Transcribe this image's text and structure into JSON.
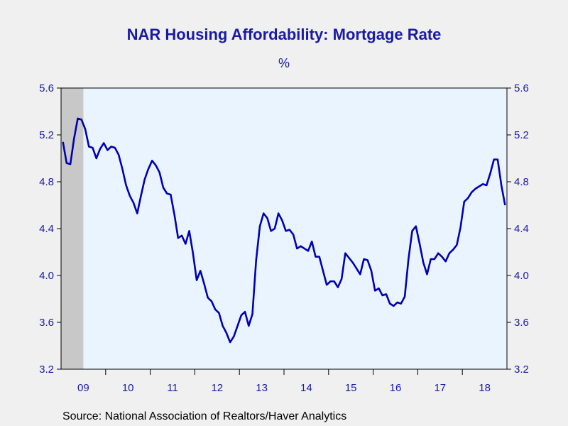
{
  "title": "NAR Housing Affordability: Mortgage Rate",
  "unit_label": "%",
  "source": "Source:  National Association of Realtors/Haver Analytics",
  "colors": {
    "line": "#0000b4",
    "plot_bg": "#eaf4ff",
    "recession": "#c8c8c8",
    "text": "#1a1aa6"
  },
  "chart_data": {
    "type": "line",
    "title": "NAR Housing Affordability: Mortgage Rate",
    "ylabel": "%",
    "ylim": [
      3.2,
      5.6
    ],
    "y_ticks": [
      3.2,
      3.6,
      4.0,
      4.4,
      4.8,
      5.2,
      5.6
    ],
    "y_tick_labels": [
      "3.2",
      "3.6",
      "4.0",
      "4.4",
      "4.8",
      "5.2",
      "5.6"
    ],
    "x_tick_labels": [
      "09",
      "10",
      "11",
      "12",
      "13",
      "14",
      "15",
      "16",
      "17",
      "18"
    ],
    "x_start": "2009-01",
    "x_end": "2018-12",
    "shaded_periods": [
      {
        "start": "2009-01",
        "end": "2009-06"
      }
    ],
    "grid": false,
    "legend": "none",
    "series": [
      {
        "values": [
          5.14,
          4.96,
          4.95,
          5.17,
          5.34,
          5.33,
          5.25,
          5.1,
          5.09,
          5.0,
          5.08,
          5.13,
          5.07,
          5.1,
          5.09,
          5.03,
          4.91,
          4.77,
          4.68,
          4.62,
          4.53,
          4.68,
          4.82,
          4.91,
          4.98,
          4.94,
          4.88,
          4.75,
          4.7,
          4.69,
          4.52,
          4.32,
          4.34,
          4.27,
          4.38,
          4.19,
          3.96,
          4.04,
          3.93,
          3.81,
          3.78,
          3.71,
          3.68,
          3.57,
          3.51,
          3.43,
          3.48,
          3.57,
          3.66,
          3.69,
          3.57,
          3.67,
          4.13,
          4.42,
          4.53,
          4.49,
          4.38,
          4.4,
          4.53,
          4.47,
          4.38,
          4.39,
          4.35,
          4.23,
          4.25,
          4.23,
          4.21,
          4.29,
          4.16,
          4.16,
          4.04,
          3.92,
          3.95,
          3.95,
          3.9,
          3.97,
          4.19,
          4.15,
          4.11,
          4.06,
          4.01,
          4.14,
          4.13,
          4.04,
          3.87,
          3.89,
          3.83,
          3.84,
          3.76,
          3.74,
          3.77,
          3.76,
          3.82,
          4.14,
          4.38,
          4.42,
          4.27,
          4.11,
          4.01,
          4.14,
          4.14,
          4.19,
          4.16,
          4.12,
          4.19,
          4.22,
          4.26,
          4.41,
          4.63,
          4.66,
          4.71,
          4.74,
          4.76,
          4.78,
          4.77,
          4.87,
          4.99,
          4.99,
          4.77,
          4.6
        ]
      }
    ]
  }
}
